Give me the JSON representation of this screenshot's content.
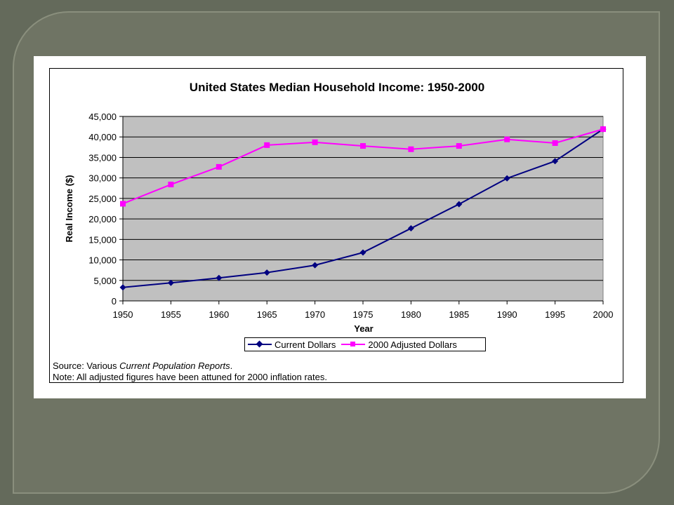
{
  "chart_data": {
    "type": "line",
    "title": "United States Median Household Income: 1950-2000",
    "xlabel": "Year",
    "ylabel": "Real Income ($)",
    "x": [
      1950,
      1955,
      1960,
      1965,
      1970,
      1975,
      1980,
      1985,
      1990,
      1995,
      2000
    ],
    "xticks": [
      "1950",
      "1955",
      "1960",
      "1965",
      "1970",
      "1975",
      "1980",
      "1985",
      "1990",
      "1995",
      "2000"
    ],
    "xlim": [
      1950,
      2000
    ],
    "ylim": [
      0,
      45000
    ],
    "yticks": [
      "0",
      "5,000",
      "10,000",
      "15,000",
      "20,000",
      "25,000",
      "30,000",
      "35,000",
      "40,000",
      "45,000"
    ],
    "grid": true,
    "legend_position": "bottom",
    "plot_background": "#c0c0c0",
    "series": [
      {
        "name": "Current Dollars",
        "color": "#000080",
        "marker": "diamond",
        "values": [
          3300,
          4400,
          5600,
          6900,
          8700,
          11800,
          17700,
          23600,
          29900,
          34100,
          41900
        ]
      },
      {
        "name": "2000 Adjusted Dollars",
        "color": "#ff00ff",
        "marker": "square",
        "values": [
          23700,
          28400,
          32700,
          38000,
          38700,
          37800,
          37000,
          37800,
          39400,
          38500,
          41900
        ]
      }
    ]
  },
  "notes": {
    "source_prefix": "Source: Various ",
    "source_italic": "Current Population Reports",
    "source_suffix": ".",
    "note": "Note: All adjusted figures have been attuned for 2000 inflation rates."
  }
}
